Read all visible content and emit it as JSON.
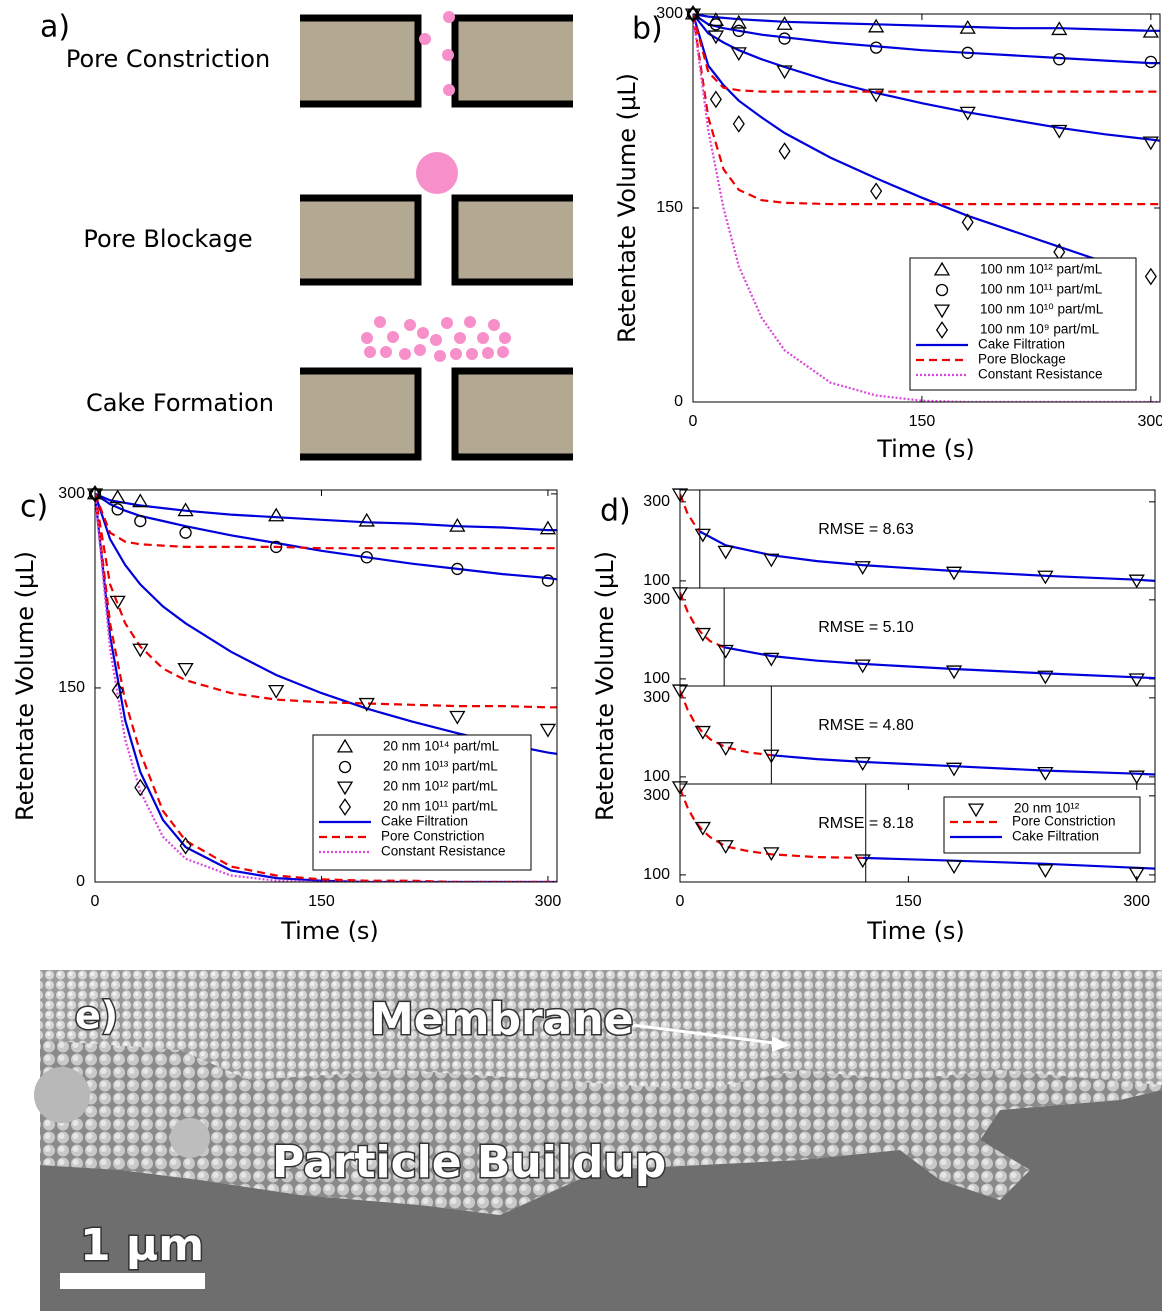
{
  "panel_a": {
    "label": "a)",
    "items": [
      "Pore Constriction",
      "Pore Blockage",
      "Cake Formation"
    ]
  },
  "chart_data": [
    {
      "type": "line",
      "label": "b)",
      "xlabel": "Time (s)",
      "ylabel": "Retentate Volume (μL)",
      "xlim": [
        0,
        306
      ],
      "ylim": [
        0,
        300
      ],
      "xticks": [
        0,
        150,
        300
      ],
      "yticks": [
        0,
        150,
        300
      ],
      "x": [
        0,
        15,
        30,
        60,
        120,
        180,
        240,
        300
      ],
      "series": [
        {
          "name": "100 nm 10¹² part/mL",
          "marker": "triangle-up",
          "color": "#000000",
          "values": [
            300,
            295,
            293,
            292,
            290,
            289,
            288,
            286
          ]
        },
        {
          "name": "100 nm 10¹¹ part/mL",
          "marker": "circle",
          "color": "#000000",
          "values": [
            300,
            292,
            287,
            281,
            274,
            270,
            265,
            263
          ]
        },
        {
          "name": "100 nm 10¹⁰ part/mL",
          "marker": "triangle-down",
          "color": "#000000",
          "values": [
            300,
            283,
            270,
            256,
            238,
            224,
            210,
            201
          ]
        },
        {
          "name": "100 nm 10⁹ part/mL",
          "marker": "diamond",
          "color": "#000000",
          "values": [
            300,
            234,
            215,
            194,
            163,
            139,
            116,
            97
          ]
        }
      ],
      "fits": [
        {
          "name": "Cake Filtration",
          "color": "#0000dd",
          "dash": "solid",
          "x": [
            0,
            10,
            20,
            30,
            45,
            60,
            90,
            120,
            150,
            180,
            210,
            240,
            270,
            300,
            306
          ],
          "curves": [
            [
              300,
              298,
              297,
              296,
              295,
              294,
              293,
              292,
              291,
              290,
              289,
              289,
              288,
              287,
              287
            ],
            [
              300,
              292,
              289,
              287,
              284,
              282,
              278,
              275,
              272,
              270,
              268,
              266,
              264,
              262,
              262
            ],
            [
              300,
              285,
              278,
              272,
              265,
              259,
              248,
              239,
              231,
              224,
              218,
              212,
              207,
              203,
              202
            ],
            [
              300,
              260,
              245,
              233,
              220,
              208,
              189,
              173,
              158,
              144,
              132,
              120,
              108,
              null,
              null
            ]
          ]
        },
        {
          "name": "Pore Blockage",
          "color": "#ee0000",
          "dash": "dashed",
          "x": [
            0,
            10,
            20,
            30,
            45,
            60,
            90,
            120,
            150,
            180,
            210,
            240,
            270,
            300,
            306
          ],
          "curves": [
            [
              300,
              255,
              243,
              241,
              240,
              240,
              240,
              240,
              240,
              240,
              240,
              240,
              240,
              240,
              240
            ],
            [
              300,
              220,
              180,
              164,
              156,
              154,
              153,
              153,
              153,
              153,
              153,
              153,
              153,
              153,
              153
            ]
          ]
        },
        {
          "name": "Constant Resistance",
          "color": "#dd44dd",
          "dash": "dotted",
          "x": [
            0,
            10,
            20,
            30,
            45,
            60,
            90,
            120,
            150,
            180,
            210,
            240,
            270,
            300,
            306
          ],
          "curves": [
            [
              300,
              210,
              150,
              105,
              65,
              40,
              15,
              5,
              1,
              0,
              0,
              0,
              0,
              0,
              0
            ]
          ]
        }
      ]
    },
    {
      "type": "line",
      "label": "c)",
      "xlabel": "Time (s)",
      "ylabel": "Retentate Volume (μL)",
      "xlim": [
        0,
        306
      ],
      "ylim": [
        0,
        303
      ],
      "xticks": [
        0,
        150,
        300
      ],
      "yticks": [
        0,
        150,
        300
      ],
      "x": [
        0,
        15,
        30,
        60,
        120,
        180,
        240,
        300
      ],
      "series": [
        {
          "name": "20 nm 10¹⁴ part/mL",
          "marker": "triangle-up",
          "color": "#000000",
          "values": [
            300,
            297,
            294,
            287,
            283,
            279,
            275,
            273
          ]
        },
        {
          "name": "20 nm 10¹³ part/mL",
          "marker": "circle",
          "color": "#000000",
          "values": [
            300,
            288,
            279,
            270,
            259,
            251,
            242,
            233
          ]
        },
        {
          "name": "20 nm 10¹² part/mL",
          "marker": "triangle-down",
          "color": "#000000",
          "values": [
            300,
            217,
            180,
            165,
            148,
            138,
            128,
            118
          ]
        },
        {
          "name": "20 nm 10¹¹ part/mL",
          "marker": "diamond",
          "color": "#000000",
          "values": [
            300,
            148,
            73,
            28,
            null,
            null,
            null,
            null
          ]
        }
      ],
      "fits": [
        {
          "name": "Cake Filtration",
          "color": "#0000dd",
          "dash": "solid",
          "x": [
            0,
            10,
            20,
            30,
            45,
            60,
            90,
            120,
            150,
            180,
            210,
            240,
            270,
            300,
            306
          ],
          "curves": [
            [
              300,
              295,
              293,
              291,
              289,
              287,
              284,
              282,
              280,
              278,
              277,
              275,
              274,
              272,
              272
            ],
            [
              300,
              292,
              287,
              283,
              279,
              275,
              268,
              262,
              256,
              251,
              246,
              242,
              238,
              235,
              234
            ],
            [
              300,
              265,
              245,
              230,
              213,
              200,
              178,
              160,
              146,
              134,
              124,
              115,
              107,
              100,
              99
            ],
            [
              300,
              190,
              125,
              85,
              48,
              27,
              9,
              3,
              1,
              0,
              0,
              0,
              0,
              0,
              0
            ]
          ]
        },
        {
          "name": "Pore Constriction",
          "color": "#ee0000",
          "dash": "dashed",
          "x": [
            0,
            10,
            20,
            30,
            45,
            60,
            90,
            120,
            150,
            180,
            210,
            240,
            270,
            300,
            306
          ],
          "curves": [
            [
              300,
              270,
              263,
              261,
              260,
              259,
              259,
              259,
              258,
              258,
              258,
              258,
              258,
              258,
              258
            ],
            [
              300,
              230,
              200,
              182,
              165,
              156,
              146,
              141,
              139,
              138,
              137,
              136,
              136,
              135,
              135
            ],
            [
              300,
              200,
              140,
              100,
              55,
              32,
              12,
              5,
              2,
              1,
              1,
              0,
              0,
              0,
              0
            ]
          ]
        },
        {
          "name": "Constant Resistance",
          "color": "#dd44dd",
          "dash": "dotted",
          "x": [
            0,
            10,
            20,
            30,
            45,
            60,
            90,
            120,
            150,
            180,
            210,
            240,
            270,
            300,
            306
          ],
          "curves": [
            [
              300,
              180,
              110,
              70,
              35,
              18,
              5,
              1,
              0,
              0,
              0,
              0,
              0,
              0,
              0
            ]
          ]
        }
      ]
    },
    {
      "type": "line",
      "label": "d)",
      "ylabel": "Retentate Volume (μL)",
      "annotation": "RMSE = 8.63",
      "split": 13,
      "xlim": [
        0,
        312
      ],
      "ylim": [
        82,
        330
      ],
      "yticks": [
        100,
        300
      ],
      "x": [
        0,
        15,
        30,
        60,
        120,
        180,
        240,
        300
      ],
      "series": [
        {
          "marker": "triangle-down",
          "color": "#000000",
          "values": [
            320,
            218,
            175,
            155,
            136,
            122,
            112,
            102
          ]
        }
      ],
      "fits": [
        {
          "color": "#ee0000",
          "dash": "dashed",
          "x": [
            0,
            5,
            10,
            13
          ],
          "curves": [
            [
              320,
              270,
              240,
              225
            ]
          ]
        },
        {
          "color": "#0000dd",
          "dash": "solid",
          "x": [
            13,
            30,
            60,
            90,
            120,
            180,
            240,
            300,
            312
          ],
          "curves": [
            [
              225,
              190,
              165,
              150,
              140,
              125,
              113,
              103,
              100
            ]
          ]
        }
      ]
    },
    {
      "type": "line",
      "annotation": "RMSE = 5.10",
      "split": 29,
      "xlim": [
        0,
        312
      ],
      "ylim": [
        82,
        330
      ],
      "yticks": [
        100,
        300
      ],
      "x": [
        0,
        15,
        30,
        60,
        120,
        180,
        240,
        300
      ],
      "series": [
        {
          "marker": "triangle-down",
          "color": "#000000",
          "values": [
            318,
            215,
            172,
            152,
            135,
            120,
            107,
            100
          ]
        }
      ],
      "fits": [
        {
          "color": "#ee0000",
          "dash": "dashed",
          "x": [
            0,
            5,
            10,
            15,
            20,
            29
          ],
          "curves": [
            [
              318,
              270,
              235,
              212,
              195,
              180
            ]
          ]
        },
        {
          "color": "#0000dd",
          "dash": "solid",
          "x": [
            29,
            60,
            90,
            120,
            180,
            240,
            300,
            312
          ],
          "curves": [
            [
              180,
              158,
              146,
              138,
              125,
              114,
              104,
              102
            ]
          ]
        }
      ]
    },
    {
      "type": "line",
      "annotation": "RMSE = 4.80",
      "split": 60,
      "xlim": [
        0,
        312
      ],
      "ylim": [
        82,
        330
      ],
      "yticks": [
        100,
        300
      ],
      "x": [
        0,
        15,
        30,
        60,
        120,
        180,
        240,
        300
      ],
      "series": [
        {
          "marker": "triangle-down",
          "color": "#000000",
          "values": [
            320,
            215,
            174,
            155,
            136,
            122,
            111,
            102
          ]
        }
      ],
      "fits": [
        {
          "color": "#ee0000",
          "dash": "dashed",
          "x": [
            0,
            5,
            10,
            15,
            20,
            30,
            45,
            60
          ],
          "curves": [
            [
              318,
              270,
              235,
              212,
              195,
              175,
              162,
              155
            ]
          ]
        },
        {
          "color": "#0000dd",
          "dash": "solid",
          "x": [
            60,
            90,
            120,
            180,
            240,
            300,
            312
          ],
          "curves": [
            [
              155,
              145,
              138,
              127,
              116,
              108,
              106
            ]
          ]
        }
      ]
    },
    {
      "type": "line",
      "xlabel": "Time (s)",
      "annotation": "RMSE = 8.18",
      "split": 122,
      "xlim": [
        0,
        312
      ],
      "ylim": [
        82,
        330
      ],
      "xticks": [
        0,
        150,
        300
      ],
      "yticks": [
        100,
        300
      ],
      "x": [
        0,
        15,
        30,
        60,
        120,
        180,
        240,
        300
      ],
      "series": [
        {
          "name": "20 nm 10¹²",
          "marker": "triangle-down",
          "color": "#000000",
          "values": [
            323,
            220,
            174,
            156,
            138,
            123,
            113,
            105
          ]
        }
      ],
      "fits": [
        {
          "name": "Pore Constriction",
          "color": "#ee0000",
          "dash": "dashed",
          "x": [
            0,
            5,
            10,
            15,
            20,
            30,
            45,
            60,
            90,
            120
          ],
          "curves": [
            [
              318,
              270,
              235,
              212,
              195,
              172,
              160,
              152,
              145,
              143
            ]
          ]
        },
        {
          "name": "Cake Filtration",
          "color": "#0000dd",
          "dash": "solid",
          "x": [
            120,
            180,
            240,
            300,
            312
          ],
          "curves": [
            [
              143,
              136,
              128,
              118,
              116
            ]
          ]
        }
      ]
    }
  ],
  "panel_e": {
    "label": "e)",
    "annotations": [
      "Membrane",
      "Particle Buildup"
    ],
    "scale_bar": "1 μm"
  }
}
